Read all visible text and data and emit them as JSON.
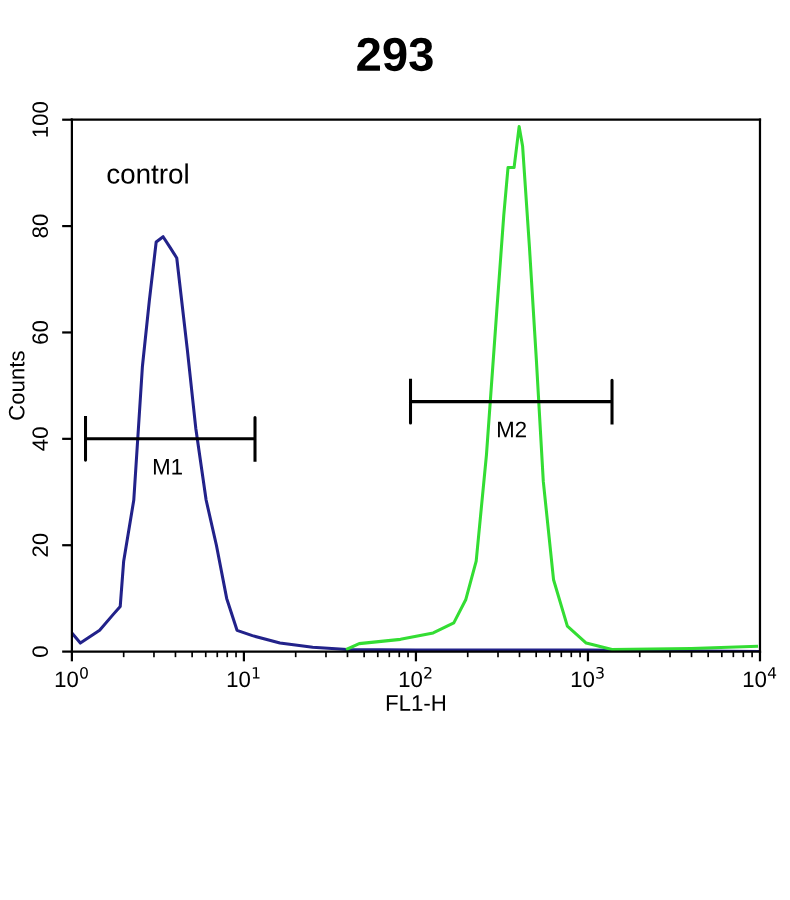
{
  "chart_data": {
    "type": "line",
    "title": "293",
    "xlabel": "FL1-H",
    "ylabel": "Counts",
    "log": "x",
    "xlim": [
      1,
      10000
    ],
    "ylim": [
      0,
      100
    ],
    "xticks": [
      {
        "value": 1,
        "label": "10$^{0}$"
      },
      {
        "value": 10,
        "label": "10$^{1}$"
      },
      {
        "value": 100,
        "label": "10$^{2}$"
      },
      {
        "value": 1000,
        "label": "10$^{3}$"
      },
      {
        "value": 10000,
        "label": "10$^{4}$"
      }
    ],
    "yticks": [
      0,
      20,
      40,
      60,
      80,
      100
    ],
    "grid": false,
    "legend": false,
    "marker": "none",
    "line_style": "solid",
    "series": [
      {
        "name": "control",
        "color": "#22228a",
        "x": [
          1.0,
          1.12,
          1.45,
          1.74,
          1.91,
          2.0,
          2.29,
          2.57,
          2.82,
          3.09,
          3.39,
          3.72,
          4.07,
          4.68,
          5.25,
          6.03,
          6.92,
          7.94,
          9.12,
          11.2,
          16.2,
          25.1,
          39.8,
          100,
          1000,
          10000
        ],
        "values": [
          3.5,
          1.6,
          4,
          7,
          8.5,
          17,
          28.5,
          53.6,
          66,
          77,
          78,
          76,
          74,
          57,
          42,
          28.5,
          20,
          10,
          4,
          3,
          1.6,
          0.8,
          0.4,
          0.3,
          0.3,
          0
        ]
      },
      {
        "color": "#33dd33",
        "x": [
          40,
          46.8,
          81.3,
          126,
          166,
          195,
          224,
          257,
          295,
          324,
          343,
          372,
          398,
          417,
          457,
          501,
          550,
          631,
          759,
          977,
          1380,
          3981,
          9550
        ],
        "values": [
          0.5,
          1.5,
          2.3,
          3.5,
          5.4,
          9.8,
          17,
          37,
          64,
          82,
          91,
          91,
          98.7,
          95,
          76,
          55,
          32,
          13.5,
          4.8,
          1.6,
          0.4,
          0.6,
          1
        ]
      },
      {
        "color": "#000000",
        "x": [
          1.2,
          1.2,
          1.2,
          11.6,
          11.6,
          11.6
        ],
        "values": [
          44,
          36,
          40,
          40,
          44,
          36
        ]
      },
      {
        "color": "#000000",
        "x": [
          93,
          93,
          93,
          1380,
          1380,
          1380
        ],
        "values": [
          51,
          43,
          47,
          47,
          51,
          43
        ]
      }
    ],
    "annotations": [
      {
        "text": "M1",
        "x": 3.6,
        "y": 40
      },
      {
        "text": "M2",
        "x": 360,
        "y": 47
      }
    ]
  }
}
